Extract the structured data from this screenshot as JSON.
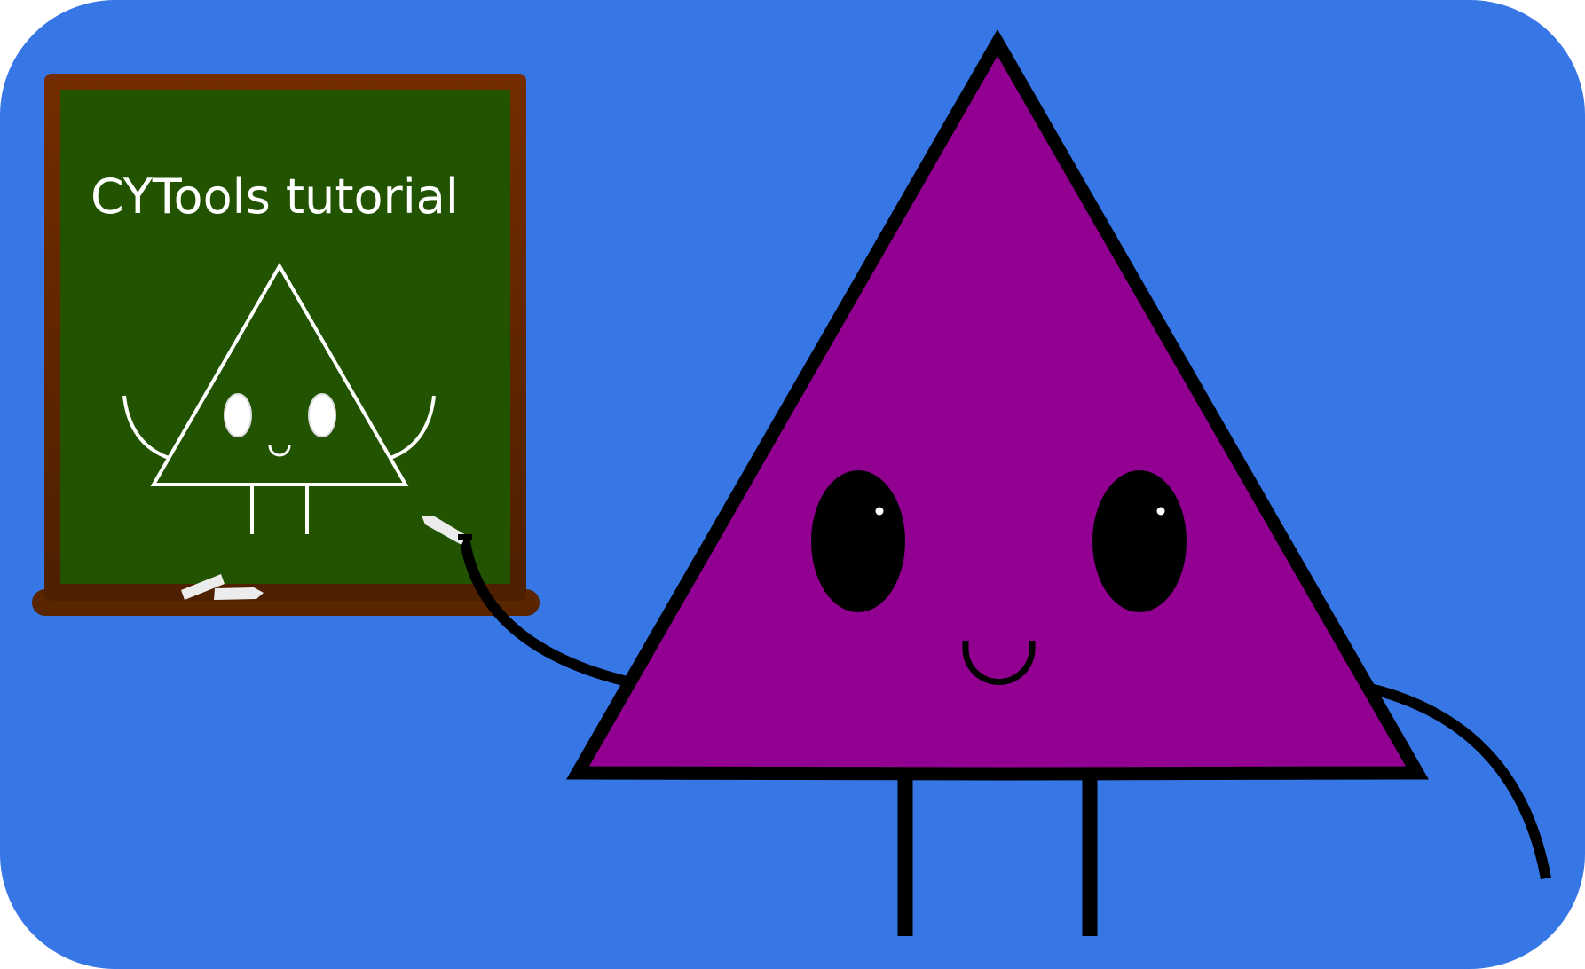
{
  "board": {
    "title": "CYTools tutorial"
  },
  "colors": {
    "background": "#3677e5",
    "board_surface": "#215300",
    "board_frame": "#6b2800",
    "board_frame_dark": "#4f2100",
    "chalk": "#ececec",
    "character_body": "#910090",
    "outline": "#000000",
    "chalk_drawing": "#ffffff"
  },
  "icons": {
    "character": "triangle-mascot",
    "board_drawing": "triangle-mascot-sketch",
    "chalk": "chalk-stick"
  }
}
